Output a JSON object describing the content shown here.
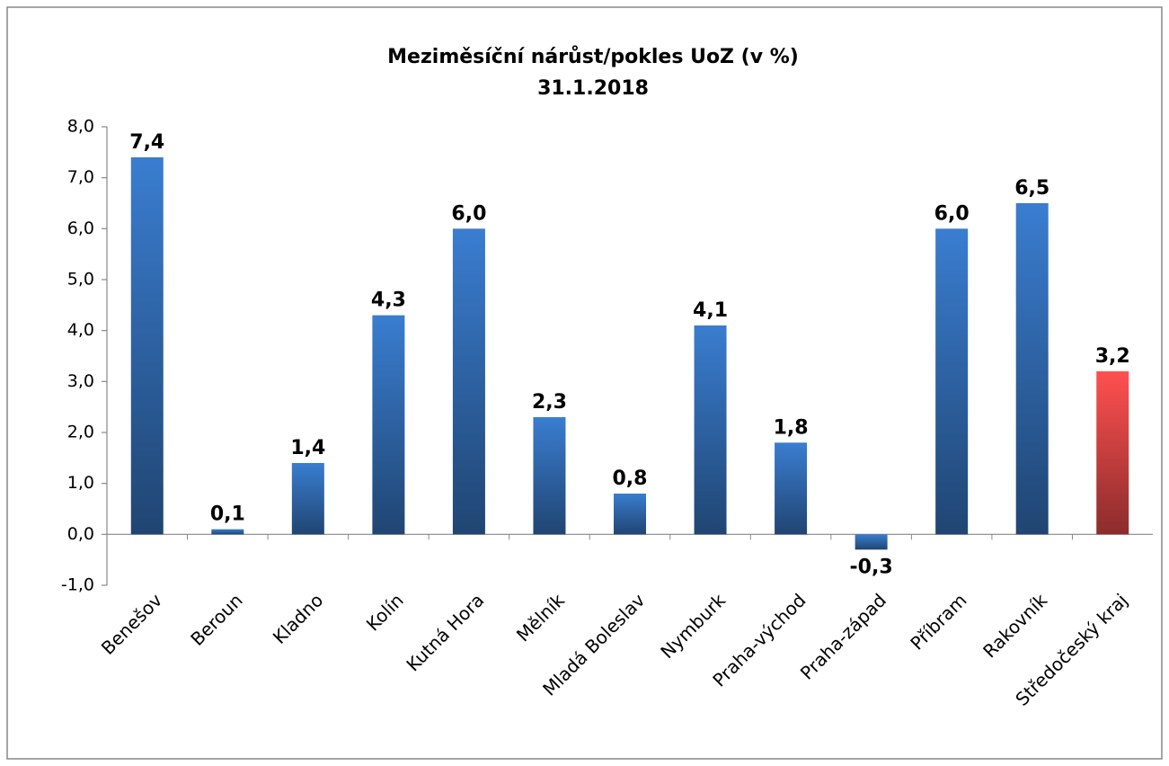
{
  "chart_data": {
    "type": "bar",
    "title": "Meziměsíční nárůst/pokles UoZ (v %)",
    "subtitle": "31.1.2018",
    "categories": [
      "Benešov",
      "Beroun",
      "Kladno",
      "Kolín",
      "Kutná Hora",
      "Mělník",
      "Mladá Boleslav",
      "Nymburk",
      "Praha-východ",
      "Praha-západ",
      "Příbram",
      "Rakovník",
      "Středočeský kraj"
    ],
    "values": [
      7.4,
      0.1,
      1.4,
      4.3,
      6.0,
      2.3,
      0.8,
      4.1,
      1.8,
      -0.3,
      6.0,
      6.5,
      3.2
    ],
    "value_labels": [
      "7,4",
      "0,1",
      "1,4",
      "4,3",
      "6,0",
      "2,3",
      "0,8",
      "4,1",
      "1,8",
      "-0,3",
      "6,0",
      "6,5",
      "3,2"
    ],
    "colors": [
      "#3a7dd0",
      "#3a7dd0",
      "#3a7dd0",
      "#3a7dd0",
      "#3a7dd0",
      "#3a7dd0",
      "#3a7dd0",
      "#3a7dd0",
      "#3a7dd0",
      "#3a7dd0",
      "#3a7dd0",
      "#3a7dd0",
      "#ff5050"
    ],
    "ylim": [
      -1,
      8
    ],
    "yticks": [
      {
        "value": -1,
        "label": "-1,0"
      },
      {
        "value": 0,
        "label": "0,0"
      },
      {
        "value": 1,
        "label": "1,0"
      },
      {
        "value": 2,
        "label": "2,0"
      },
      {
        "value": 3,
        "label": "3,0"
      },
      {
        "value": 4,
        "label": "4,0"
      },
      {
        "value": 5,
        "label": "5,0"
      },
      {
        "value": 6,
        "label": "6,0"
      },
      {
        "value": 7,
        "label": "7,0"
      },
      {
        "value": 8,
        "label": "8,0"
      }
    ],
    "grid": false
  }
}
